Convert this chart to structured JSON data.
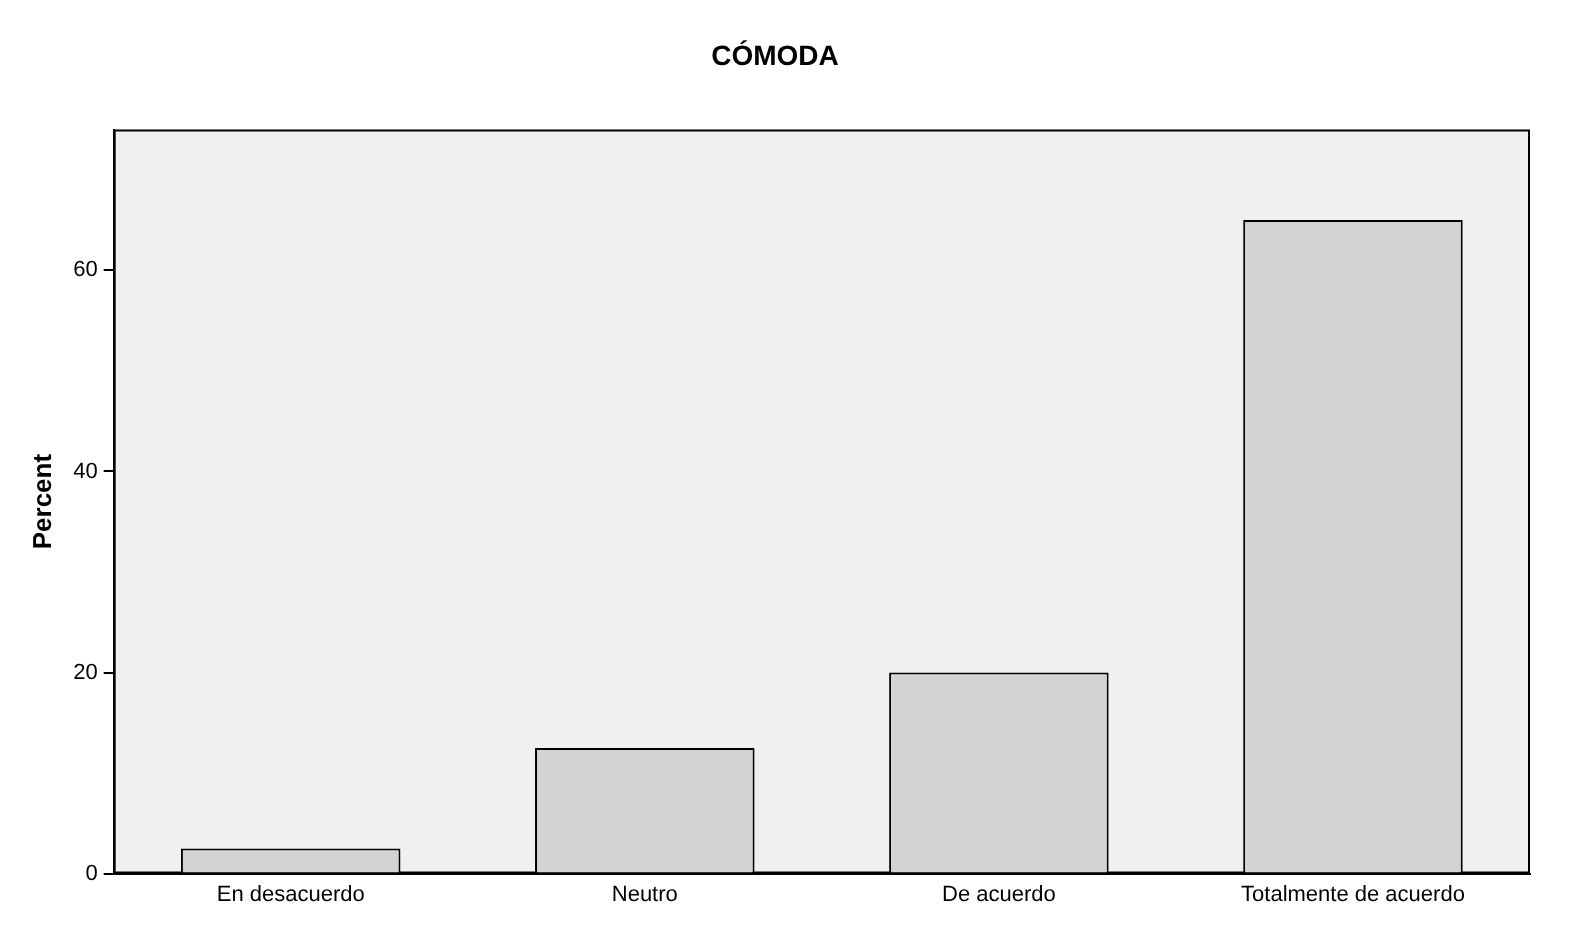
{
  "chart_data": {
    "type": "bar",
    "title": "CÓMODA",
    "ylabel": "Percent",
    "categories": [
      "En desacuerdo",
      "Neutro",
      "De acuerdo",
      "Totalmente de acuerdo"
    ],
    "values": [
      2.5,
      12.5,
      20,
      65
    ],
    "color": "#d3d3d3",
    "ylim": [
      0,
      74
    ],
    "yticks": [
      0,
      20,
      40,
      60
    ],
    "grid": false,
    "legend": false
  }
}
